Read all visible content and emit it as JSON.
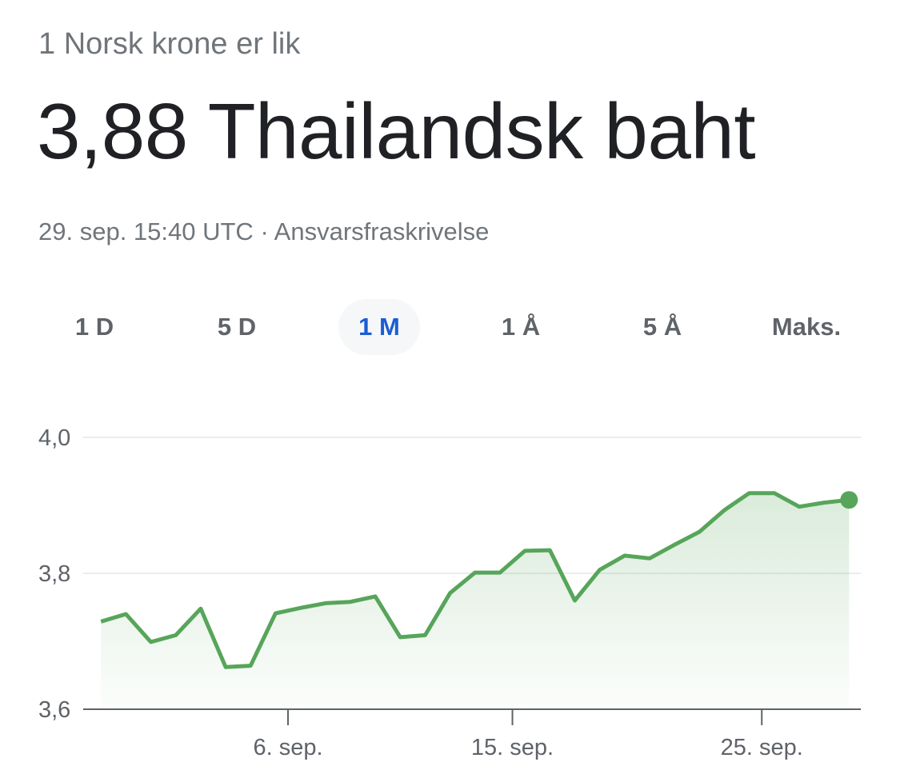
{
  "header": {
    "subtitle": "1 Norsk krone er lik",
    "value": "3,88 Thailandsk baht",
    "timestamp": "29. sep. 15:40 UTC",
    "separator": " · ",
    "disclaimer_link": "Ansvarsfraskrivelse"
  },
  "tabs": [
    {
      "label": "1 D",
      "active": false
    },
    {
      "label": "5 D",
      "active": false
    },
    {
      "label": "1 M",
      "active": true
    },
    {
      "label": "1 Å",
      "active": false
    },
    {
      "label": "5 Å",
      "active": false
    },
    {
      "label": "Maks.",
      "active": false
    }
  ],
  "colors": {
    "line": "#57a55a",
    "active_tab": "#1a5dd6",
    "grid": "#ececec"
  },
  "chart_data": {
    "type": "area",
    "xlabel": "",
    "ylabel": "",
    "ylim": [
      3.6,
      4.0
    ],
    "yticks": [
      {
        "v": 3.6,
        "label": "3,6"
      },
      {
        "v": 3.8,
        "label": "3,8"
      },
      {
        "v": 4.0,
        "label": "4,0"
      }
    ],
    "xticks": [
      {
        "x": "09-06T00:00",
        "label": "6. sep."
      },
      {
        "x": "09-15T00:00",
        "label": "15. sep."
      },
      {
        "x": "09-25T00:00",
        "label": "25. sep."
      }
    ],
    "grid": true,
    "x": [
      "08-29T12:00",
      "08-30T12:00",
      "08-31T12:00",
      "09-01T12:00",
      "09-02T12:00",
      "09-03T12:00",
      "09-04T12:00",
      "09-05T12:00",
      "09-06T12:00",
      "09-07T12:00",
      "09-08T12:00",
      "09-09T12:00",
      "09-10T12:00",
      "09-11T12:00",
      "09-12T12:00",
      "09-13T12:00",
      "09-14T12:00",
      "09-15T12:00",
      "09-16T12:00",
      "09-17T12:00",
      "09-18T12:00",
      "09-19T12:00",
      "09-20T12:00",
      "09-21T12:00",
      "09-22T12:00",
      "09-23T12:00",
      "09-24T12:00",
      "09-25T12:00",
      "09-26T12:00",
      "09-27T12:00",
      "09-28T12:00"
    ],
    "values": [
      3.729,
      3.74,
      3.699,
      3.709,
      3.748,
      3.662,
      3.664,
      3.741,
      3.749,
      3.756,
      3.758,
      3.766,
      3.706,
      3.709,
      3.771,
      3.801,
      3.801,
      3.833,
      3.834,
      3.76,
      3.805,
      3.826,
      3.822,
      3.842,
      3.861,
      3.893,
      3.918,
      3.918,
      3.898,
      3.904,
      3.908
    ]
  }
}
